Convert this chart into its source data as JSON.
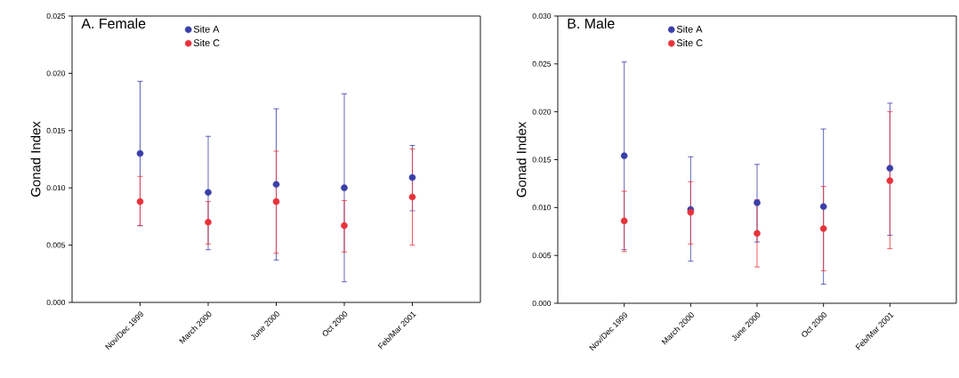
{
  "chart_data": [
    {
      "type": "scatter",
      "title": "A. Female",
      "ylabel": "Gonad Index",
      "categories": [
        "Nov/Dec 1999",
        "March 2000",
        "June 2000",
        "Oct 2000",
        "Feb/Mar 2001"
      ],
      "series": [
        {
          "name": "Site A",
          "color": "#3a3fa8",
          "values": [
            0.013,
            0.0096,
            0.0103,
            0.01,
            0.0109
          ],
          "errors": [
            [
              0.0067,
              0.0193
            ],
            [
              0.0046,
              0.0145
            ],
            [
              0.0037,
              0.0169
            ],
            [
              0.0018,
              0.0182
            ],
            [
              0.008,
              0.0137
            ]
          ]
        },
        {
          "name": "Site C",
          "color": "#e8323a",
          "values": [
            0.0088,
            0.007,
            0.0088,
            0.0067,
            0.0092
          ],
          "errors": [
            [
              0.0067,
              0.011
            ],
            [
              0.0051,
              0.0088
            ],
            [
              0.0043,
              0.0132
            ],
            [
              0.0044,
              0.0089
            ],
            [
              0.005,
              0.0134
            ]
          ]
        }
      ],
      "ylim": [
        0,
        0.025
      ],
      "yticks": [
        {
          "value": 0,
          "label": "0.000"
        },
        {
          "value": 0.005,
          "label": "0.005"
        },
        {
          "value": 0.01,
          "label": "0.010"
        },
        {
          "value": 0.015,
          "label": "0.015"
        },
        {
          "value": 0.02,
          "label": "0.020"
        },
        {
          "value": 0.025,
          "label": "0.025"
        }
      ],
      "legend": "top left",
      "marker": "circle"
    },
    {
      "type": "scatter",
      "title": "B. Male",
      "ylabel": "Gonad Index",
      "categories": [
        "Nov/Dec 1999",
        "March 2000",
        "June 2000",
        "Oct 2000",
        "Feb/Mar 2001"
      ],
      "series": [
        {
          "name": "Site A",
          "color": "#3a3fa8",
          "values": [
            0.0154,
            0.0098,
            0.0105,
            0.0101,
            0.0141
          ],
          "errors": [
            [
              0.0056,
              0.0252
            ],
            [
              0.0044,
              0.0153
            ],
            [
              0.0064,
              0.0145
            ],
            [
              0.002,
              0.0182
            ],
            [
              0.0071,
              0.0209
            ]
          ]
        },
        {
          "name": "Site C",
          "color": "#e8323a",
          "values": [
            0.0086,
            0.0095,
            0.0073,
            0.0078,
            0.0128
          ],
          "errors": [
            [
              0.0054,
              0.0117
            ],
            [
              0.0062,
              0.0127
            ],
            [
              0.0038,
              0.0108
            ],
            [
              0.0034,
              0.0122
            ],
            [
              0.0057,
              0.02
            ]
          ]
        }
      ],
      "ylim": [
        0,
        0.03
      ],
      "yticks": [
        {
          "value": 0,
          "label": "0.000"
        },
        {
          "value": 0.005,
          "label": "0.005"
        },
        {
          "value": 0.01,
          "label": "0.010"
        },
        {
          "value": 0.015,
          "label": "0.015"
        },
        {
          "value": 0.02,
          "label": "0.020"
        },
        {
          "value": 0.025,
          "label": "0.025"
        },
        {
          "value": 0.03,
          "label": "0.030"
        }
      ],
      "legend": "top left",
      "marker": "circle"
    }
  ]
}
